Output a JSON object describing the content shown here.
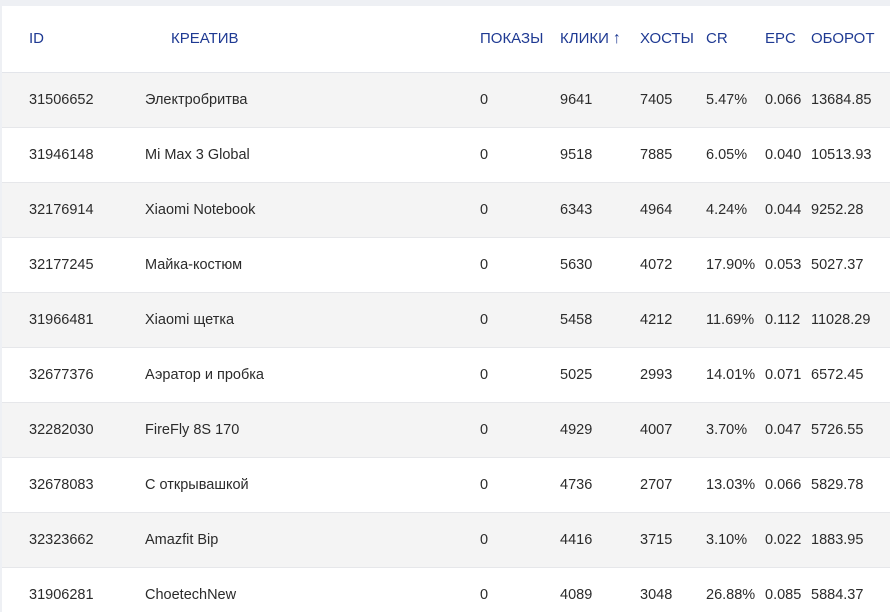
{
  "table": {
    "headers": {
      "id": "ID",
      "creative": "КРЕАТИВ",
      "shows": "ПОКАЗЫ",
      "clicks": "КЛИКИ",
      "clicks_sort_arrow": "↑",
      "hosts": "ХОСТЫ",
      "cr": "CR",
      "epc": "EPC",
      "turnover": "ОБОРОТ"
    },
    "rows": [
      {
        "id": "31506652",
        "creative": "Электробритва",
        "shows": "0",
        "clicks": "9641",
        "hosts": "7405",
        "cr": "5.47%",
        "epc": "0.066",
        "turnover": "13684.85"
      },
      {
        "id": "31946148",
        "creative": "Mi Max 3 Global",
        "shows": "0",
        "clicks": "9518",
        "hosts": "7885",
        "cr": "6.05%",
        "epc": "0.040",
        "turnover": "10513.93"
      },
      {
        "id": "32176914",
        "creative": "Xiaomi Notebook",
        "shows": "0",
        "clicks": "6343",
        "hosts": "4964",
        "cr": "4.24%",
        "epc": "0.044",
        "turnover": "9252.28"
      },
      {
        "id": "32177245",
        "creative": "Майка-костюм",
        "shows": "0",
        "clicks": "5630",
        "hosts": "4072",
        "cr": "17.90%",
        "epc": "0.053",
        "turnover": "5027.37"
      },
      {
        "id": "31966481",
        "creative": "Xiaomi щетка",
        "shows": "0",
        "clicks": "5458",
        "hosts": "4212",
        "cr": "11.69%",
        "epc": "0.112",
        "turnover": "11028.29"
      },
      {
        "id": "32677376",
        "creative": "Аэратор и пробка",
        "shows": "0",
        "clicks": "5025",
        "hosts": "2993",
        "cr": "14.01%",
        "epc": "0.071",
        "turnover": "6572.45"
      },
      {
        "id": "32282030",
        "creative": "FireFly 8S 170",
        "shows": "0",
        "clicks": "4929",
        "hosts": "4007",
        "cr": "3.70%",
        "epc": "0.047",
        "turnover": "5726.55"
      },
      {
        "id": "32678083",
        "creative": "С открывашкой",
        "shows": "0",
        "clicks": "4736",
        "hosts": "2707",
        "cr": "13.03%",
        "epc": "0.066",
        "turnover": "5829.78"
      },
      {
        "id": "32323662",
        "creative": "Amazfit Bip",
        "shows": "0",
        "clicks": "4416",
        "hosts": "3715",
        "cr": "3.10%",
        "epc": "0.022",
        "turnover": "1883.95"
      },
      {
        "id": "31906281",
        "creative": "ChoetechNew",
        "shows": "0",
        "clicks": "4089",
        "hosts": "3048",
        "cr": "26.88%",
        "epc": "0.085",
        "turnover": "5884.37"
      }
    ]
  },
  "colors": {
    "header_text": "#1f3a93",
    "row_alt_bg": "#f4f4f4",
    "row_bg": "#ffffff",
    "page_bg": "#eef0f4"
  }
}
